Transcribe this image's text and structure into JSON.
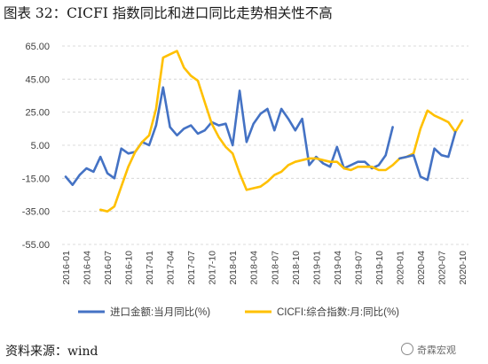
{
  "title": "图表 32：CICFI 指数同比和进口同比走势相关性不高",
  "source": "资料来源：wind",
  "watermark": "奇霖宏观",
  "chart_data": {
    "type": "line",
    "grid": "horizontal-dashed",
    "legend_position": "bottom",
    "ylim": [
      -55,
      65
    ],
    "yticks": [
      "65.00",
      "45.00",
      "25.00",
      "5.00",
      "-15.00",
      "-35.00",
      "-55.00"
    ],
    "ytick_values": [
      65,
      45,
      25,
      5,
      -15,
      -35,
      -55
    ],
    "x_ticks": [
      "2016-01",
      "2016-04",
      "2016-07",
      "2016-10",
      "2017-01",
      "2017-04",
      "2017-07",
      "2017-10",
      "2018-01",
      "2018-04",
      "2018-07",
      "2018-10",
      "2019-01",
      "2019-04",
      "2019-07",
      "2019-10",
      "2020-01",
      "2020-04",
      "2020-07",
      "2020-10"
    ],
    "x_start": "2016-01",
    "series": [
      {
        "name": "进口金额:当月同比(%)",
        "color": "#4472C4",
        "points": [
          [
            "2016-01",
            -14
          ],
          [
            "2016-02",
            -19
          ],
          [
            "2016-03",
            -13
          ],
          [
            "2016-04",
            -9
          ],
          [
            "2016-05",
            -11
          ],
          [
            "2016-06",
            -2
          ],
          [
            "2016-07",
            -12
          ],
          [
            "2016-08",
            -15
          ],
          [
            "2016-09",
            3
          ],
          [
            "2016-10",
            0
          ],
          [
            "2016-11",
            1
          ],
          [
            "2016-12",
            7
          ],
          [
            "2017-01",
            5
          ],
          [
            "2017-02",
            17
          ],
          [
            "2017-03",
            40
          ],
          [
            "2017-04",
            16
          ],
          [
            "2017-05",
            11
          ],
          [
            "2017-06",
            15
          ],
          [
            "2017-07",
            17
          ],
          [
            "2017-08",
            12
          ],
          [
            "2017-09",
            14
          ],
          [
            "2017-10",
            19
          ],
          [
            "2017-11",
            17
          ],
          [
            "2017-12",
            18
          ],
          [
            "2018-01",
            5
          ],
          [
            "2018-02",
            38
          ],
          [
            "2018-03",
            7
          ],
          [
            "2018-04",
            18
          ],
          [
            "2018-05",
            24
          ],
          [
            "2018-06",
            27
          ],
          [
            "2018-07",
            14
          ],
          [
            "2018-08",
            27
          ],
          [
            "2018-09",
            21
          ],
          [
            "2018-10",
            14
          ],
          [
            "2018-11",
            21
          ],
          [
            "2018-12",
            -7
          ],
          [
            "2019-01",
            -2
          ],
          [
            "2019-02",
            -6
          ],
          [
            "2019-03",
            -8
          ],
          [
            "2019-04",
            4
          ],
          [
            "2019-05",
            -9
          ],
          [
            "2019-06",
            -7
          ],
          [
            "2019-07",
            -5
          ],
          [
            "2019-08",
            -5
          ],
          [
            "2019-09",
            -9
          ],
          [
            "2019-10",
            -7
          ],
          [
            "2019-11",
            -1
          ],
          [
            "2019-12",
            16
          ]
        ]
      },
      {
        "name": "CICFI:综合指数:月:同比(%)",
        "color": "#FFC000",
        "points": [
          [
            "2016-06",
            -34
          ],
          [
            "2016-07",
            -35
          ],
          [
            "2016-08",
            -32
          ],
          [
            "2016-09",
            -20
          ],
          [
            "2016-10",
            -8
          ],
          [
            "2016-11",
            1
          ],
          [
            "2016-12",
            7
          ],
          [
            "2017-01",
            11
          ],
          [
            "2017-02",
            27
          ],
          [
            "2017-03",
            58
          ],
          [
            "2017-04",
            60
          ],
          [
            "2017-05",
            62
          ],
          [
            "2017-06",
            52
          ],
          [
            "2017-07",
            47
          ],
          [
            "2017-08",
            44
          ],
          [
            "2017-09",
            31
          ],
          [
            "2017-10",
            18
          ],
          [
            "2017-11",
            10
          ],
          [
            "2017-12",
            4
          ],
          [
            "2018-01",
            0
          ],
          [
            "2018-02",
            -12
          ],
          [
            "2018-03",
            -22
          ],
          [
            "2018-04",
            -21
          ],
          [
            "2018-05",
            -20
          ],
          [
            "2018-06",
            -17
          ],
          [
            "2018-07",
            -13
          ],
          [
            "2018-08",
            -11
          ],
          [
            "2018-09",
            -7
          ],
          [
            "2018-10",
            -5
          ],
          [
            "2018-11",
            -4
          ],
          [
            "2018-12",
            -3
          ],
          [
            "2019-01",
            -3
          ],
          [
            "2019-02",
            -4
          ],
          [
            "2019-03",
            -5
          ],
          [
            "2019-04",
            -5
          ],
          [
            "2019-05",
            -9
          ],
          [
            "2019-06",
            -10
          ],
          [
            "2019-07",
            -8
          ],
          [
            "2019-08",
            -8
          ],
          [
            "2019-09",
            -8
          ],
          [
            "2019-10",
            -10
          ],
          [
            "2019-11",
            -10
          ],
          [
            "2019-12",
            -7
          ],
          [
            "2020-01",
            -3
          ],
          [
            "2020-02",
            -2
          ],
          [
            "2020-03",
            0
          ],
          [
            "2020-04",
            15
          ],
          [
            "2020-05",
            26
          ],
          [
            "2020-06",
            23
          ],
          [
            "2020-07",
            21
          ],
          [
            "2020-08",
            19
          ],
          [
            "2020-09",
            13
          ],
          [
            "2020-10",
            20
          ]
        ]
      },
      {
        "name": "进口金额:当月同比(%)",
        "color": "#4472C4",
        "legend": false,
        "points": [
          [
            "2020-01",
            -3
          ],
          [
            "2020-02",
            -2
          ],
          [
            "2020-03",
            -1
          ],
          [
            "2020-04",
            -14
          ],
          [
            "2020-05",
            -16
          ],
          [
            "2020-06",
            3
          ],
          [
            "2020-07",
            -1
          ],
          [
            "2020-08",
            -2
          ],
          [
            "2020-09",
            13
          ]
        ]
      }
    ]
  }
}
